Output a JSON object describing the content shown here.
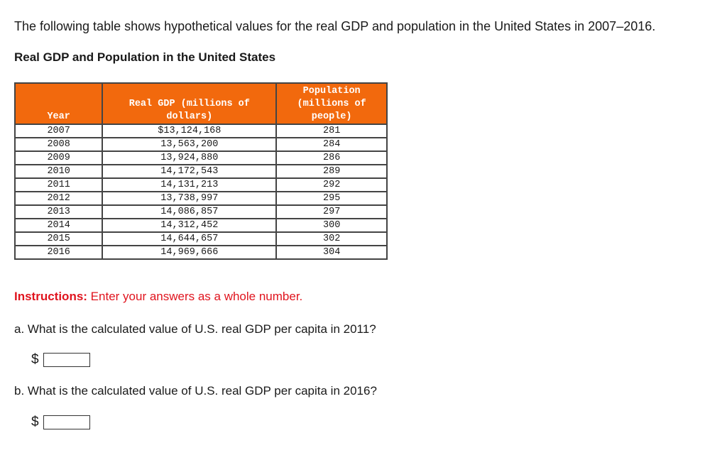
{
  "intro": "The following table shows hypothetical values for the real GDP and population in the United States in 2007–2016.",
  "table": {
    "caption": "Real GDP and Population in the United States",
    "header_color": "#f2690d",
    "headers": [
      "Year",
      "Real GDP (millions of dollars)",
      "Population (millions of people)"
    ],
    "rows": [
      [
        "2007",
        "$13,124,168",
        "281"
      ],
      [
        "2008",
        "13,563,200",
        "284"
      ],
      [
        "2009",
        "13,924,880",
        "286"
      ],
      [
        "2010",
        "14,172,543",
        "289"
      ],
      [
        "2011",
        "14,131,213",
        "292"
      ],
      [
        "2012",
        "13,738,997",
        "295"
      ],
      [
        "2013",
        "14,086,857",
        "297"
      ],
      [
        "2014",
        "14,312,452",
        "300"
      ],
      [
        "2015",
        "14,644,657",
        "302"
      ],
      [
        "2016",
        "14,969,666",
        "304"
      ]
    ]
  },
  "instructions": {
    "label": "Instructions:",
    "text": " Enter your answers as a whole number."
  },
  "questions": [
    {
      "text": "a. What is the calculated value of U.S. real GDP per capita in 2011?",
      "prefix": "$",
      "value": ""
    },
    {
      "text": "b. What is the calculated value of U.S. real GDP per capita in 2016?",
      "prefix": "$",
      "value": ""
    }
  ]
}
